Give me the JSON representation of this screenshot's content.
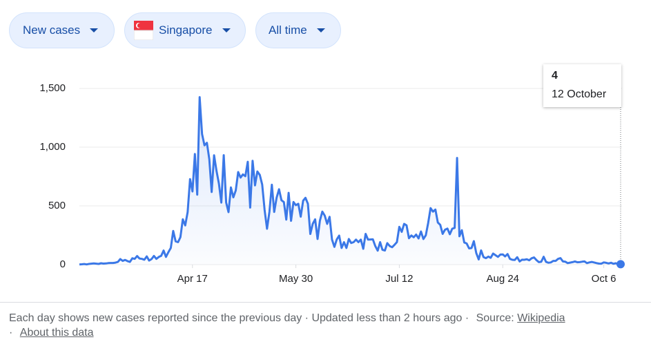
{
  "controls": {
    "metric": "New cases",
    "location": "Singapore",
    "range": "All time"
  },
  "chart_data": {
    "type": "line",
    "color": "#3b78e7",
    "values": [
      2,
      3,
      5,
      2,
      6,
      8,
      10,
      8,
      6,
      12,
      9,
      10,
      13,
      14,
      14,
      17,
      23,
      47,
      32,
      40,
      30,
      23,
      54,
      49,
      73,
      52,
      49,
      42,
      70,
      35,
      47,
      74,
      49,
      65,
      75,
      120,
      66,
      106,
      142,
      287,
      198,
      191,
      233,
      386,
      334,
      447,
      728,
      623,
      942,
      596,
      1426,
      1111,
      1016,
      1037,
      897,
      618,
      931,
      799,
      690,
      528,
      932,
      528,
      447,
      657,
      573,
      632,
      788,
      741,
      768,
      753,
      876,
      486,
      884,
      675,
      793,
      764,
      682,
      465,
      305,
      451,
      680,
      448,
      570,
      642,
      548,
      533,
      383,
      611,
      373,
      533,
      506,
      518,
      408,
      544,
      569,
      518,
      261,
      347,
      386,
      218,
      375,
      451,
      417,
      347,
      407,
      214,
      151,
      214,
      247,
      142,
      191,
      142,
      218,
      184,
      191,
      213,
      191,
      213,
      135,
      262,
      213,
      214,
      215,
      158,
      119,
      191,
      126,
      120,
      183,
      158,
      148,
      169,
      191,
      322,
      279,
      347,
      334,
      225,
      248,
      233,
      256,
      223,
      282,
      218,
      250,
      354,
      481,
      451,
      469,
      359,
      339,
      262,
      297,
      307,
      259,
      306,
      313,
      908,
      242,
      293,
      188,
      180,
      138,
      141,
      200,
      98,
      44,
      121,
      64,
      55,
      68,
      58,
      94,
      80,
      66,
      86,
      87,
      70,
      90,
      49,
      41,
      40,
      63,
      27,
      42,
      41,
      46,
      37,
      54,
      61,
      39,
      21,
      24,
      67,
      23,
      16,
      19,
      32,
      32,
      49,
      55,
      27,
      25,
      13,
      17,
      21,
      27,
      20,
      21,
      25,
      27,
      13,
      19,
      23,
      18,
      13,
      9,
      8,
      19,
      15,
      10,
      16,
      7,
      12,
      3,
      4
    ],
    "xlim": [
      0,
      225
    ],
    "xticks": [
      {
        "value": 47,
        "label": "Apr 17"
      },
      {
        "value": 90,
        "label": "May 30"
      },
      {
        "value": 133,
        "label": "Jul 12"
      },
      {
        "value": 176,
        "label": "Aug 24"
      },
      {
        "value": 218,
        "label": "Oct 6"
      }
    ],
    "ylim": [
      0,
      1500
    ],
    "yticks": [
      0,
      {
        "value": 500,
        "label": "500"
      },
      {
        "value": 1000,
        "label": "1,000"
      },
      {
        "value": 1500,
        "label": "1,500"
      }
    ],
    "grid": true,
    "tooltip_date": "12 October"
  },
  "footer": {
    "note": "Each day shows new cases reported since the previous day · Updated less than 2 hours ago ·",
    "source_label": "Source:",
    "source_link": "Wikipedia",
    "about": "About this data"
  }
}
